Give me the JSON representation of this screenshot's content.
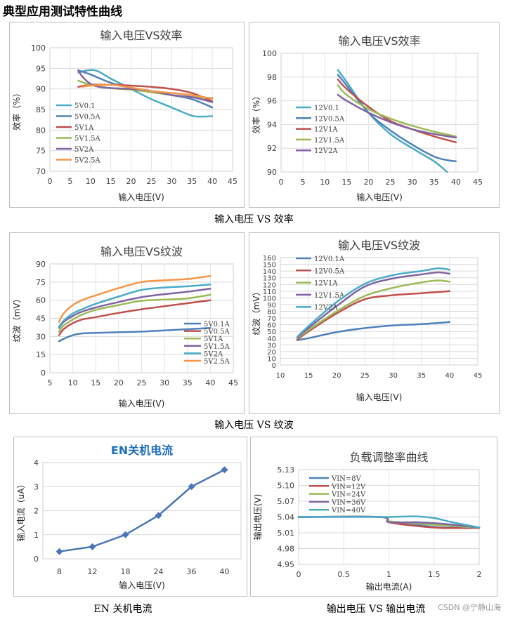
{
  "page_title": "典型应用测试特性曲线",
  "captions": {
    "efficiency": "输入电压 VS 效率",
    "ripple": "输入电压 VS 纹波",
    "en": "EN 关机电流",
    "load": "输出电压 VS 输出电流"
  },
  "watermark": "CSDN @宁静山海",
  "chart_data": [
    {
      "id": "eff5",
      "type": "line",
      "title": "输入电压VS效率",
      "xlabel": "输入电压(V)",
      "ylabel": "效率（%）",
      "xlim": [
        0,
        45
      ],
      "ylim": [
        70,
        100
      ],
      "xticks": [
        0,
        5,
        10,
        15,
        20,
        25,
        30,
        35,
        40,
        45
      ],
      "yticks": [
        70,
        75,
        80,
        85,
        90,
        95,
        100
      ],
      "grid": true,
      "legend": "left",
      "series": [
        {
          "name": "5V0.1",
          "color": "#4bacc6",
          "x": [
            7,
            10,
            12,
            15,
            20,
            25,
            30,
            35,
            38,
            40
          ],
          "y": [
            94,
            94.6,
            94.2,
            92.5,
            90,
            87.5,
            85.5,
            83.5,
            83.3,
            83.4
          ]
        },
        {
          "name": "5V0.5A",
          "color": "#4f81bd",
          "x": [
            7,
            10,
            15,
            20,
            25,
            30,
            35,
            40
          ],
          "y": [
            94.5,
            93.5,
            91.5,
            90.3,
            89.5,
            88.5,
            87.5,
            85.5
          ]
        },
        {
          "name": "5V1A",
          "color": "#c0504d",
          "x": [
            7,
            10,
            15,
            20,
            25,
            30,
            35,
            40
          ],
          "y": [
            90.5,
            91,
            91,
            90.8,
            90.5,
            90,
            89,
            87
          ]
        },
        {
          "name": "5V1.5A",
          "color": "#9bbb59",
          "x": [
            7,
            10,
            15,
            20,
            25,
            30,
            35,
            40
          ],
          "y": [
            92,
            91,
            90.2,
            89.8,
            89.2,
            88.5,
            88,
            87.8
          ]
        },
        {
          "name": "5V2A",
          "color": "#8064a2",
          "x": [
            7,
            8,
            10,
            12,
            15,
            20,
            25,
            30,
            35,
            40
          ],
          "y": [
            94.5,
            93,
            91.2,
            90.5,
            90.2,
            90,
            89.5,
            88.5,
            88,
            86.8
          ]
        },
        {
          "name": "5V2.5A",
          "color": "#f79646",
          "x": [
            8,
            10,
            15,
            20,
            25,
            30,
            35,
            40
          ],
          "y": [
            90.5,
            90.8,
            91,
            90.3,
            89.5,
            89,
            88.5,
            87.6
          ]
        }
      ]
    },
    {
      "id": "eff12",
      "type": "line",
      "title": "输入电压VS效率",
      "xlabel": "输入电压(V)",
      "ylabel": "效率（%）",
      "xlim": [
        0,
        45
      ],
      "ylim": [
        90,
        100
      ],
      "xticks": [
        0,
        5,
        10,
        15,
        20,
        25,
        30,
        35,
        40,
        45
      ],
      "yticks": [
        90,
        92,
        94,
        96,
        98,
        100
      ],
      "grid": true,
      "legend": "left",
      "series": [
        {
          "name": "12V0.1",
          "color": "#4bacc6",
          "x": [
            13,
            15,
            20,
            25,
            30,
            35,
            38
          ],
          "y": [
            98.6,
            97.6,
            95,
            93.2,
            92,
            90.9,
            90
          ]
        },
        {
          "name": "12V0.5A",
          "color": "#4f81bd",
          "x": [
            13,
            15,
            20,
            25,
            30,
            35,
            38,
            40
          ],
          "y": [
            98.2,
            97.3,
            95,
            93.5,
            92.3,
            91.3,
            91,
            90.9
          ]
        },
        {
          "name": "12V1A",
          "color": "#c0504d",
          "x": [
            13,
            15,
            20,
            25,
            30,
            35,
            40
          ],
          "y": [
            97.8,
            97,
            95.5,
            94.3,
            93.6,
            93,
            92.5
          ]
        },
        {
          "name": "12V1.5A",
          "color": "#9bbb59",
          "x": [
            13,
            15,
            20,
            25,
            30,
            35,
            40
          ],
          "y": [
            97.3,
            96.5,
            95.3,
            94.5,
            93.9,
            93.4,
            93
          ]
        },
        {
          "name": "12V2A",
          "color": "#8064a2",
          "x": [
            13,
            15,
            20,
            25,
            30,
            35,
            40
          ],
          "y": [
            96.5,
            96,
            95,
            94.2,
            93.6,
            93.2,
            92.9
          ]
        }
      ]
    },
    {
      "id": "rip5",
      "type": "line",
      "title": "输入电压VS纹波",
      "xlabel": "输入电压(V)",
      "ylabel": "纹波（mV）",
      "xlim": [
        5,
        45
      ],
      "ylim": [
        0,
        90
      ],
      "xticks": [
        5,
        10,
        15,
        20,
        25,
        30,
        35,
        40,
        45
      ],
      "yticks": [
        0,
        15,
        30,
        45,
        60,
        75,
        90
      ],
      "grid": true,
      "legend": "right",
      "series": [
        {
          "name": "5V0.1A",
          "color": "#4f81bd",
          "x": [
            7,
            8,
            10,
            12,
            15,
            20,
            25,
            30,
            35,
            40
          ],
          "y": [
            26,
            28,
            31,
            32.5,
            33,
            33.5,
            34,
            35,
            36,
            37
          ]
        },
        {
          "name": "5V0.5A",
          "color": "#c0504d",
          "x": [
            7,
            8,
            10,
            12,
            15,
            20,
            25,
            30,
            35,
            40
          ],
          "y": [
            31,
            36,
            41,
            44,
            46,
            49.5,
            52.5,
            55,
            57.5,
            60
          ]
        },
        {
          "name": "5V1A",
          "color": "#9bbb59",
          "x": [
            7,
            8,
            10,
            12,
            15,
            20,
            25,
            30,
            35,
            40
          ],
          "y": [
            34,
            39,
            44,
            48,
            52,
            56,
            59.5,
            60.5,
            61.5,
            64.5
          ]
        },
        {
          "name": "5V1.5A",
          "color": "#8064a2",
          "x": [
            7,
            8,
            10,
            12,
            15,
            20,
            25,
            30,
            35,
            40
          ],
          "y": [
            37,
            42,
            47,
            50.5,
            54,
            58.5,
            62.5,
            65,
            67,
            69.5
          ]
        },
        {
          "name": "5V2A",
          "color": "#4bacc6",
          "x": [
            7,
            8,
            10,
            12,
            15,
            20,
            25,
            30,
            35,
            40
          ],
          "y": [
            38,
            43,
            49,
            52.5,
            57,
            63,
            68.5,
            70.5,
            71.5,
            73
          ]
        },
        {
          "name": "5V2.5A",
          "color": "#f79646",
          "x": [
            7,
            8,
            10,
            12,
            15,
            20,
            25,
            30,
            35,
            40
          ],
          "y": [
            42,
            49,
            56,
            60,
            64,
            70,
            75,
            76.5,
            77.5,
            80
          ]
        }
      ]
    },
    {
      "id": "rip12",
      "type": "line",
      "title": "输入电压VS纹波",
      "xlabel": "输入电压(V)",
      "ylabel": "纹波（mV）",
      "xlim": [
        10,
        45
      ],
      "ylim": [
        0,
        160
      ],
      "xticks": [
        10,
        15,
        20,
        25,
        30,
        35,
        40,
        45
      ],
      "yticks": [
        0,
        10,
        20,
        30,
        40,
        50,
        60,
        70,
        80,
        90,
        100,
        110,
        120,
        130,
        140,
        150,
        160
      ],
      "grid": true,
      "legend": "left",
      "series": [
        {
          "name": "12V0.1A",
          "color": "#4f81bd",
          "x": [
            13,
            15,
            20,
            25,
            30,
            35,
            40
          ],
          "y": [
            37,
            40,
            49,
            55,
            59,
            61,
            64
          ]
        },
        {
          "name": "12V0.5A",
          "color": "#c0504d",
          "x": [
            13,
            15,
            20,
            25,
            30,
            35,
            40
          ],
          "y": [
            38,
            50,
            77,
            98,
            104,
            107,
            110
          ]
        },
        {
          "name": "12V1A",
          "color": "#9bbb59",
          "x": [
            13,
            15,
            20,
            25,
            30,
            35,
            38,
            40
          ],
          "y": [
            40,
            52,
            80,
            103,
            115,
            123,
            126,
            124
          ]
        },
        {
          "name": "12V1.5A",
          "color": "#8064a2",
          "x": [
            13,
            15,
            20,
            25,
            30,
            35,
            38,
            40
          ],
          "y": [
            41,
            55,
            88,
            117,
            129,
            135,
            138,
            136
          ]
        },
        {
          "name": "12V2A",
          "color": "#4bacc6",
          "x": [
            13,
            15,
            20,
            25,
            30,
            35,
            38,
            40
          ],
          "y": [
            42,
            58,
            94,
            121,
            134,
            140,
            144,
            142
          ]
        }
      ]
    },
    {
      "id": "en",
      "type": "line",
      "title": "EN关机电流",
      "xlabel": "输入电压(V)",
      "ylabel": "输入电流（uA）",
      "categories": [
        "8",
        "12",
        "18",
        "24",
        "36",
        "40"
      ],
      "values": [
        0.3,
        0.5,
        1,
        1.8,
        3,
        3.7
      ],
      "ylim": [
        0,
        4
      ],
      "yticks": [
        0,
        1,
        2,
        3,
        4
      ],
      "grid": true,
      "color": "#4a76b8",
      "title_color": "#1f6fc0"
    },
    {
      "id": "load",
      "type": "line",
      "title": "负载调整率曲线",
      "xlabel": "输出电流(A)",
      "ylabel": "输出电压(V)",
      "xlim": [
        0,
        2
      ],
      "ylim": [
        4.95,
        5.13
      ],
      "xticks": [
        0,
        0.5,
        1,
        1.5,
        2
      ],
      "xtick_labels": [
        "0",
        "0.5",
        "1",
        "1.5",
        "2"
      ],
      "yticks": [
        4.95,
        4.98,
        5.01,
        5.04,
        5.07,
        5.1,
        5.13
      ],
      "ytick_labels": [
        "4.95",
        "4.98",
        "5.01",
        "5.04",
        "5.07",
        "5.10",
        "5.13"
      ],
      "grid": true,
      "legend": "left",
      "series": [
        {
          "name": "VIN=8V",
          "color": "#4f81bd",
          "x": [
            0,
            0.9,
            1,
            1.3,
            1.6,
            2
          ],
          "y": [
            5.04,
            5.04,
            5.03,
            5.025,
            5.02,
            5.02
          ]
        },
        {
          "name": "VIN=12V",
          "color": "#c0504d",
          "x": [
            0,
            0.9,
            1,
            1.3,
            1.6,
            2
          ],
          "y": [
            5.04,
            5.04,
            5.03,
            5.023,
            5.019,
            5.019
          ]
        },
        {
          "name": "VIN=24V",
          "color": "#9bbb59",
          "x": [
            0,
            0.9,
            1,
            1.3,
            1.6,
            2
          ],
          "y": [
            5.04,
            5.04,
            5.032,
            5.028,
            5.024,
            5.02
          ]
        },
        {
          "name": "VIN=36V",
          "color": "#8064a2",
          "x": [
            0,
            0.9,
            1,
            1.3,
            1.6,
            2
          ],
          "y": [
            5.04,
            5.04,
            5.03,
            5.03,
            5.027,
            5.02
          ]
        },
        {
          "name": "VIN=40V",
          "color": "#4bacc6",
          "x": [
            0,
            0.9,
            1,
            1.3,
            1.5,
            1.7,
            2
          ],
          "y": [
            5.04,
            5.04,
            5.04,
            5.041,
            5.038,
            5.03,
            5.02
          ]
        }
      ]
    }
  ]
}
